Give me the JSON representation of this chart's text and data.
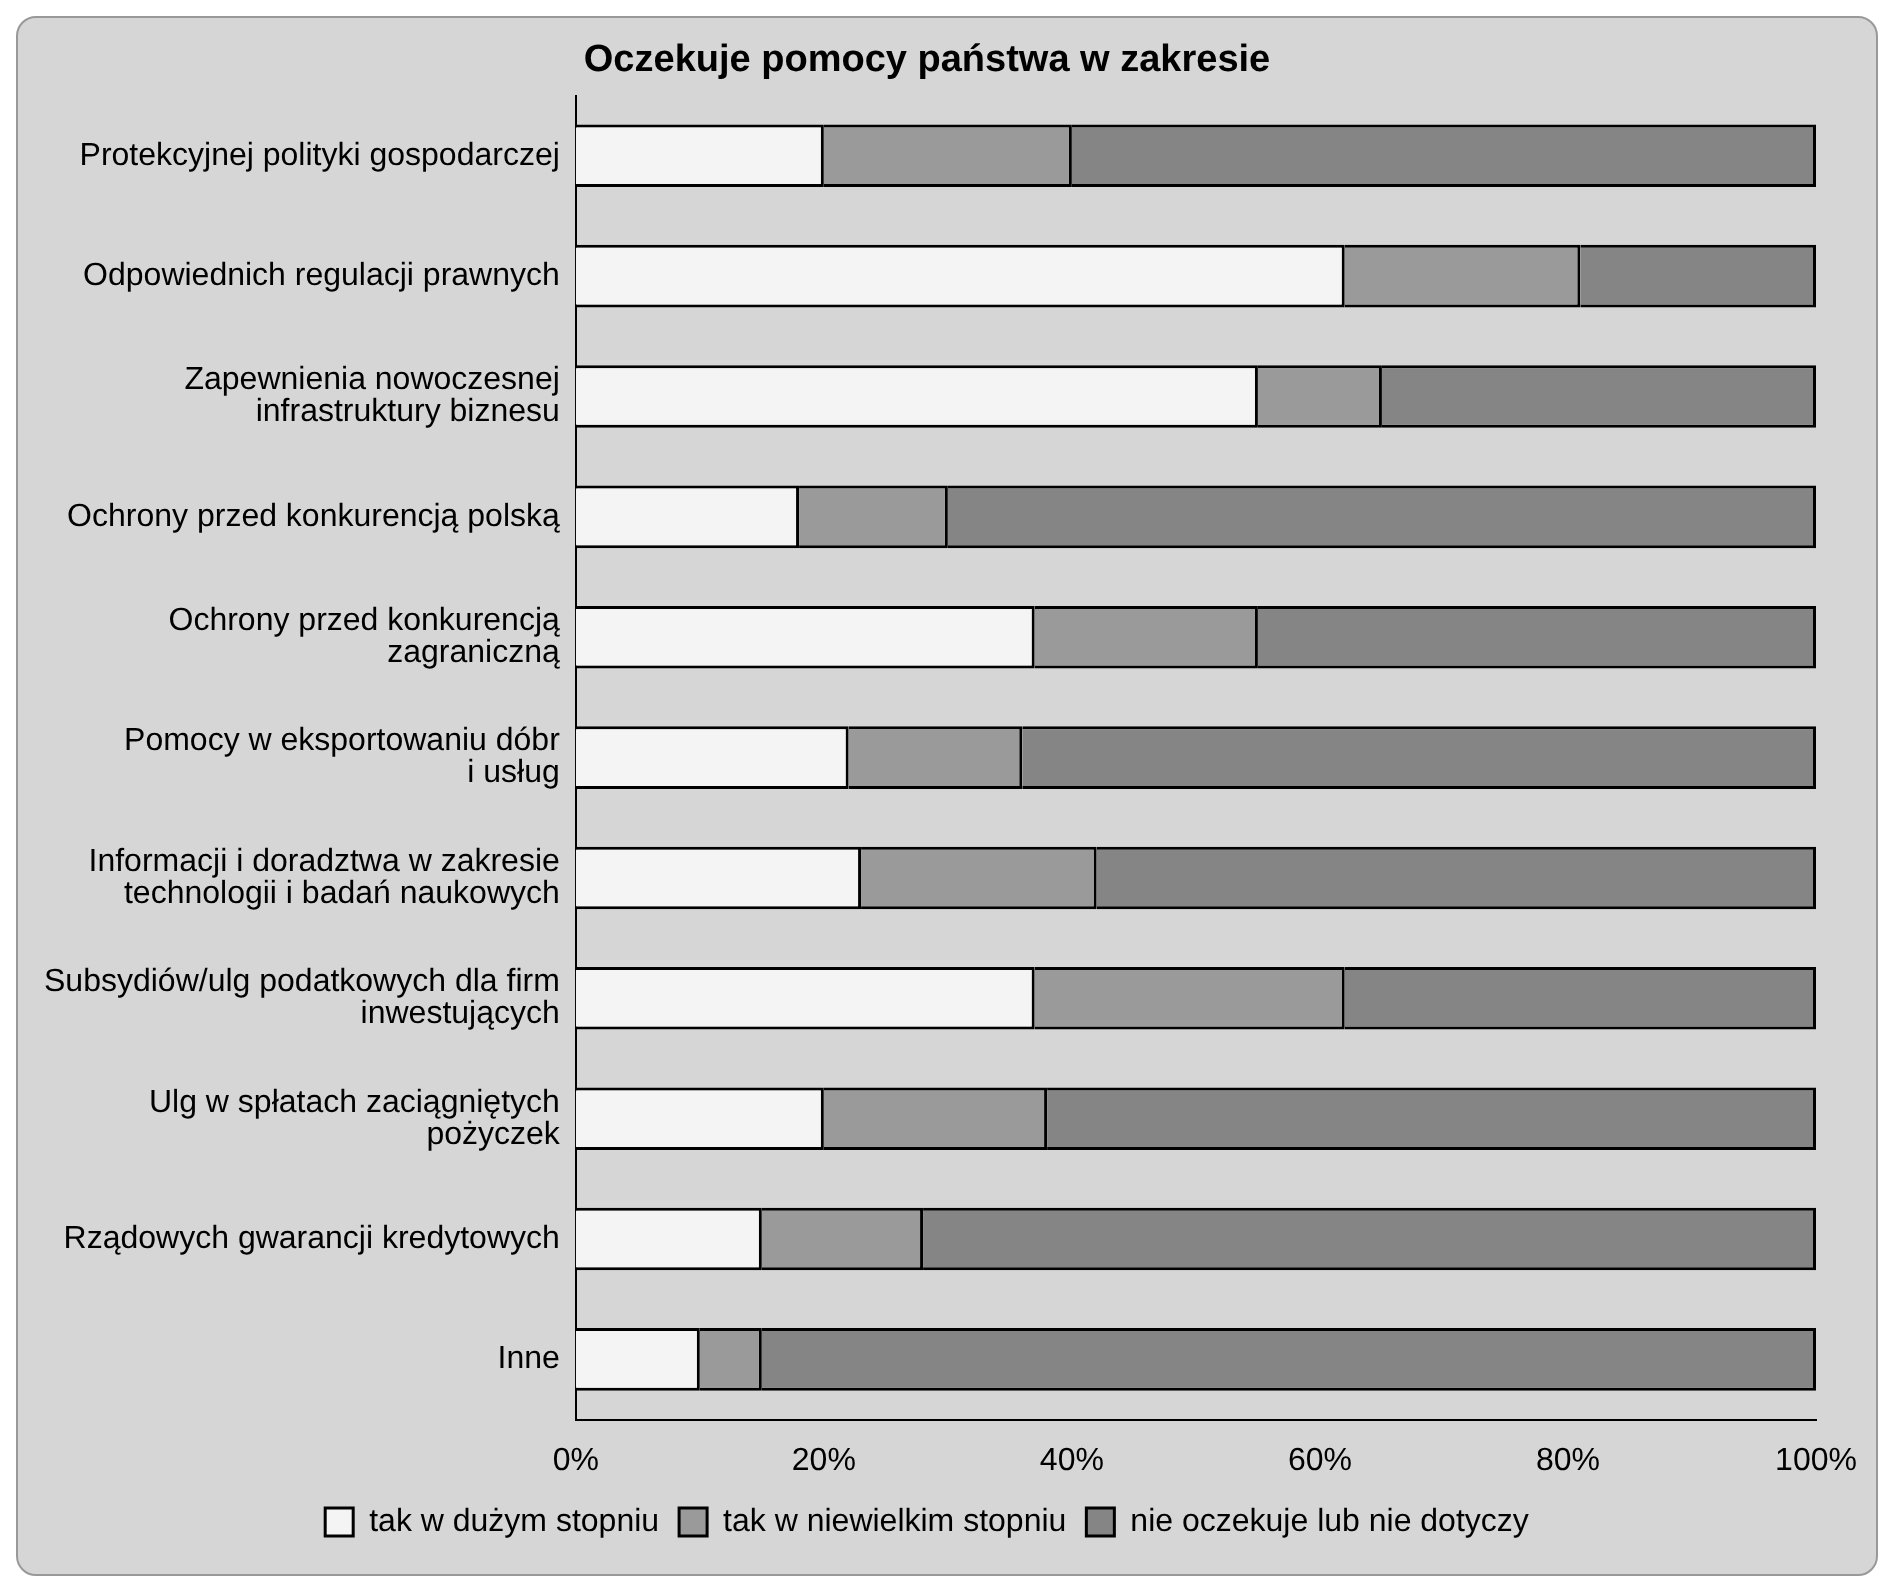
{
  "chart_data": {
    "type": "bar",
    "orientation": "horizontal",
    "stacked": true,
    "title": "Oczekuje pomocy państwa w zakresie",
    "categories": [
      "Protekcyjnej polityki gospodarczej",
      "Odpowiednich regulacji prawnych",
      "Zapewnienia nowoczesnej\ninfrastruktury biznesu",
      "Ochrony przed konkurencją polską",
      "Ochrony przed konkurencją\nzagraniczną",
      "Pomocy w eksportowaniu dóbr\ni usług",
      "Informacji i doradztwa w zakresie\ntechnologii i badań naukowych",
      "Subsydiów/ulg podatkowych dla firm\ninwestujących",
      "Ulg w spłatach zaciągniętych\npożyczek",
      "Rządowych gwarancji kredytowych",
      "Inne"
    ],
    "series": [
      {
        "name": "tak w dużym stopniu",
        "color": "#f4f4f4",
        "values": [
          20,
          62,
          55,
          18,
          37,
          22,
          23,
          37,
          20,
          15,
          10
        ]
      },
      {
        "name": "tak w niewielkim stopniu",
        "color": "#9a9a9a",
        "values": [
          20,
          19,
          10,
          12,
          18,
          14,
          19,
          25,
          18,
          13,
          5
        ]
      },
      {
        "name": "nie oczekuje lub nie dotyczy",
        "color": "#858585",
        "values": [
          60,
          19,
          35,
          70,
          45,
          64,
          58,
          38,
          62,
          72,
          85
        ]
      }
    ],
    "xlim": [
      0,
      100
    ],
    "xticks": [
      {
        "value": 0,
        "label": "0%"
      },
      {
        "value": 20,
        "label": "20%"
      },
      {
        "value": 40,
        "label": "40%"
      },
      {
        "value": 60,
        "label": "60%"
      },
      {
        "value": 80,
        "label": "80%"
      },
      {
        "value": 100,
        "label": "100%"
      }
    ],
    "grid": false,
    "legend": "bottom"
  }
}
